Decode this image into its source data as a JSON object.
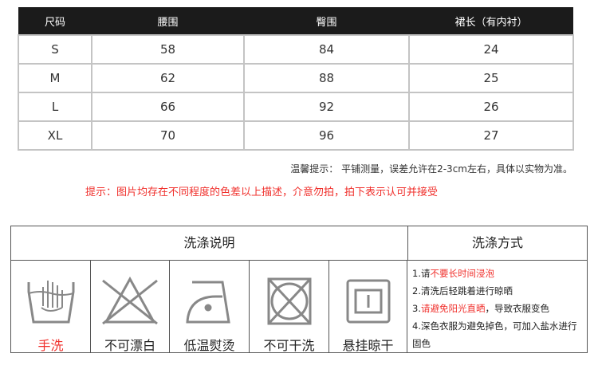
{
  "size_table": {
    "headers": [
      "尺码",
      "腰围",
      "臀围",
      "裙长（有内衬）"
    ],
    "rows": [
      [
        "S",
        "58",
        "84",
        "24"
      ],
      [
        "M",
        "62",
        "88",
        "25"
      ],
      [
        "L",
        "66",
        "92",
        "26"
      ],
      [
        "XL",
        "70",
        "96",
        "27"
      ]
    ]
  },
  "notes": {
    "tip": "温馨提示：  平铺测量，误差允许在2-3cm左右，具体以实物为准。",
    "color_tip": "提示：图片均存在不同程度的色差以上描述，介意勿拍，拍下表示认可并接受"
  },
  "wash": {
    "title": "洗涤说明",
    "method_title": "洗涤方式",
    "icons": [
      {
        "icon": "hand-wash-icon",
        "label": "手洗"
      },
      {
        "icon": "no-bleach-icon",
        "label": "不可漂白"
      },
      {
        "icon": "low-iron-icon",
        "label": "低温熨烫"
      },
      {
        "icon": "no-dry-clean-icon",
        "label": "不可干洗"
      },
      {
        "icon": "hang-dry-icon",
        "label": "悬挂晾干"
      }
    ],
    "methods": [
      {
        "prefix": "1.请",
        "highlight": "不要长时间浸泡",
        "suffix": ""
      },
      {
        "prefix": "2.清洗后轻跳着进行晾晒",
        "highlight": "",
        "suffix": ""
      },
      {
        "prefix": "3.",
        "highlight": "请避免阳光直晒",
        "suffix": "，导致衣服变色"
      },
      {
        "prefix": "4.深色衣服为避免掉色，可加入盐水进行固色",
        "highlight": "",
        "suffix": ""
      }
    ]
  },
  "colors": {
    "header_bg": "#1b1b1b",
    "accent_red": "#f0302c",
    "icon_gray": "#888888"
  }
}
